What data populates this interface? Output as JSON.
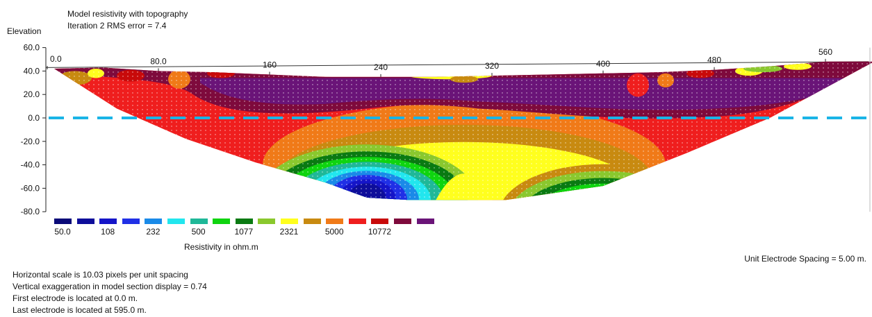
{
  "header": {
    "title_line1": "Model resistivity with topography",
    "title_line2": "Iteration 2 RMS error = 7.4",
    "y_axis_label": "Elevation"
  },
  "chart_data": {
    "type": "heatmap",
    "title": "Model resistivity with topography",
    "subtitle": "Iteration 2 RMS error = 7.4",
    "ylabel": "Elevation",
    "x_ticks": [
      "0.0",
      "80.0",
      "160",
      "240",
      "320",
      "400",
      "480",
      "560"
    ],
    "x_tick_values": [
      0,
      80,
      160,
      240,
      320,
      400,
      480,
      560
    ],
    "y_ticks": [
      "60.0",
      "40.0",
      "20.0",
      "0.0",
      "-20.0",
      "-40.0",
      "-60.0",
      "-80.0"
    ],
    "y_tick_values": [
      60,
      40,
      20,
      0,
      -20,
      -40,
      -60,
      -80
    ],
    "xlim": [
      0,
      600
    ],
    "ylim": [
      -80,
      60
    ],
    "reference_line_elevation": 0,
    "topography": [
      [
        5,
        42
      ],
      [
        40,
        43
      ],
      [
        80,
        40
      ],
      [
        120,
        39
      ],
      [
        160,
        37
      ],
      [
        200,
        35
      ],
      [
        240,
        35
      ],
      [
        280,
        35
      ],
      [
        320,
        36
      ],
      [
        360,
        37
      ],
      [
        400,
        38
      ],
      [
        440,
        39
      ],
      [
        480,
        41
      ],
      [
        520,
        44
      ],
      [
        560,
        48
      ],
      [
        595,
        48
      ]
    ],
    "section_bottom": [
      [
        5,
        42
      ],
      [
        50,
        8
      ],
      [
        100,
        -18
      ],
      [
        150,
        -38
      ],
      [
        200,
        -55
      ],
      [
        230,
        -68
      ],
      [
        260,
        -70
      ],
      [
        330,
        -70
      ],
      [
        400,
        -58
      ],
      [
        460,
        -30
      ],
      [
        520,
        0
      ],
      [
        595,
        48
      ]
    ],
    "legend": {
      "title": "Resistivity in ohm.m",
      "colors": [
        "#0a0a78",
        "#0e0e9a",
        "#1515c8",
        "#2030e6",
        "#1a8ae8",
        "#22e6ee",
        "#1fb898",
        "#0fd40f",
        "#0a7a12",
        "#8ac82e",
        "#ffff1e",
        "#c88a10",
        "#f07a18",
        "#ef1e1e",
        "#c80a0a",
        "#7e0a3c",
        "#6a1478"
      ],
      "labels": [
        "50.0",
        "108",
        "232",
        "500",
        "1077",
        "2321",
        "5000",
        "10772"
      ],
      "label_positions": [
        0,
        2,
        4,
        6,
        8,
        10,
        12,
        14
      ]
    }
  },
  "unit_spacing": "Unit Electrode Spacing = 5.00 m.",
  "footer": [
    "Horizontal scale is 10.03 pixels per unit spacing",
    "Vertical exaggeration in model section display = 0.74",
    "First electrode is located at 0.0  m.",
    "Last electrode is located at 595.0 m."
  ],
  "colors": {
    "reference_line": "#1ab4e6"
  }
}
